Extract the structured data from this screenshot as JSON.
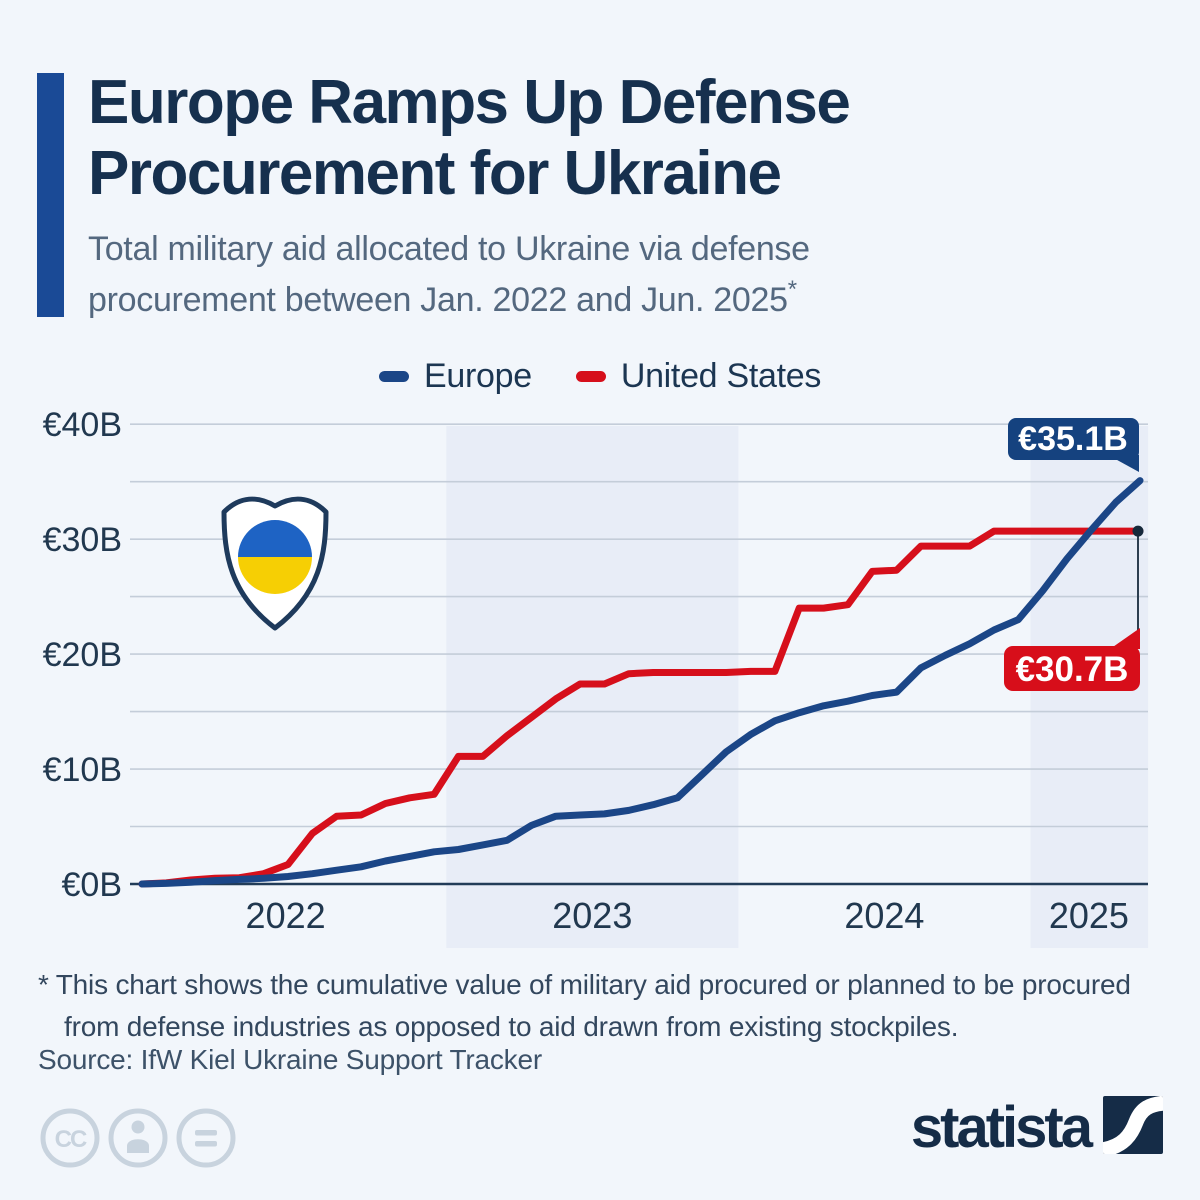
{
  "title": {
    "line1": "Europe Ramps Up Defense",
    "line2": "Procurement for Ukraine"
  },
  "subtitle": {
    "line1": "Total military aid allocated to Ukraine via defense",
    "line2": "procurement between Jan. 2022 and Jun. 2025",
    "asterisk": "*"
  },
  "legend": [
    {
      "label": "Europe",
      "color": "#1b4687"
    },
    {
      "label": "United States",
      "color": "#d60f1b"
    }
  ],
  "chart_data": {
    "type": "line",
    "title": "Total military aid allocated to Ukraine via defense procurement between Jan. 2022 and Jun. 2025",
    "unit": "EUR billions, cumulative",
    "x_start_month": "2022-01",
    "x_end_month": "2025-06",
    "x_interval": "1 month",
    "n_points": 42,
    "ylim": [
      0,
      40
    ],
    "y_ticks": [
      0,
      10,
      20,
      30,
      40
    ],
    "y_tick_labels": [
      "€0B",
      "€10B",
      "€20B",
      "€30B",
      "€40B"
    ],
    "gridline_step_billion": 5,
    "grid": "horizontal only",
    "legend_position": "top center",
    "x_ticks": [
      {
        "label": "2022",
        "month_index": 5.9
      },
      {
        "label": "2023",
        "month_index": 18.5
      },
      {
        "label": "2024",
        "month_index": 30.5
      },
      {
        "label": "2025",
        "month_index": 38.9
      }
    ],
    "year_bands_month_index": [
      {
        "from": 12.5,
        "to": 24.5
      },
      {
        "from": 36.5,
        "to": 41.33
      }
    ],
    "series": [
      {
        "name": "United States",
        "color": "#d60f1b",
        "end_label": "€30.7B",
        "end_value": 30.7,
        "end_dot": true,
        "values": [
          0,
          0.1,
          0.35,
          0.5,
          0.55,
          0.9,
          1.7,
          4.4,
          5.9,
          6,
          7,
          7.5,
          7.8,
          11.1,
          11.1,
          12.9,
          14.5,
          16.1,
          17.4,
          17.4,
          18.3,
          18.4,
          18.4,
          18.4,
          18.4,
          18.5,
          18.5,
          24,
          24,
          24.3,
          27.2,
          27.3,
          29.4,
          29.4,
          29.4,
          30.7,
          30.7,
          30.7,
          30.7,
          30.7,
          30.7,
          30.7
        ]
      },
      {
        "name": "Europe",
        "color": "#1b4687",
        "end_label": "€35.1B",
        "end_value": 35.1,
        "end_dot": false,
        "values": [
          0,
          0.05,
          0.15,
          0.3,
          0.4,
          0.5,
          0.65,
          0.9,
          1.2,
          1.5,
          2,
          2.4,
          2.8,
          3,
          3.4,
          3.8,
          5.1,
          5.9,
          6,
          6.1,
          6.4,
          6.9,
          7.5,
          9.5,
          11.5,
          13,
          14.2,
          14.9,
          15.5,
          15.9,
          16.4,
          16.7,
          18.8,
          19.9,
          20.9,
          22.1,
          23,
          25.5,
          28.3,
          30.8,
          33.2,
          35.1
        ]
      }
    ]
  },
  "badges": {
    "europe": "€35.1B",
    "us": "€30.7B"
  },
  "footnote": {
    "line1": "* This chart shows the cumulative value of military aid procured or planned to be procured",
    "line2": "from defense industries as opposed to aid drawn from existing stockpiles."
  },
  "source": "Source: IfW Kiel Ukraine Support Tracker",
  "logo": {
    "wordmark": "statista"
  },
  "cc_icons": {
    "cc_label": "CC"
  },
  "colors": {
    "background": "#f2f6fb",
    "band": "#e8edf7",
    "accent_bar": "#1a4a96",
    "title": "#16304e",
    "subtitle": "#54687f",
    "gridline": "#c4cdd9",
    "axis_line": "#223c58",
    "axis_label": "#21384f",
    "europe": "#1b4687",
    "us": "#d60f1b",
    "badge_europe_bg": "#15427f",
    "badge_us_bg": "#d70e1a",
    "badge_text": "#ffffff",
    "connector": "#2c3e50",
    "end_dot": "#16293b",
    "footnote": "#33475e",
    "source": "#3d5269",
    "cc_icon": "#c8d3de",
    "logo": "#152c47",
    "flag_blue": "#1e63c4",
    "flag_yellow": "#f6cf04",
    "shield_outline": "#1e3a5c"
  }
}
